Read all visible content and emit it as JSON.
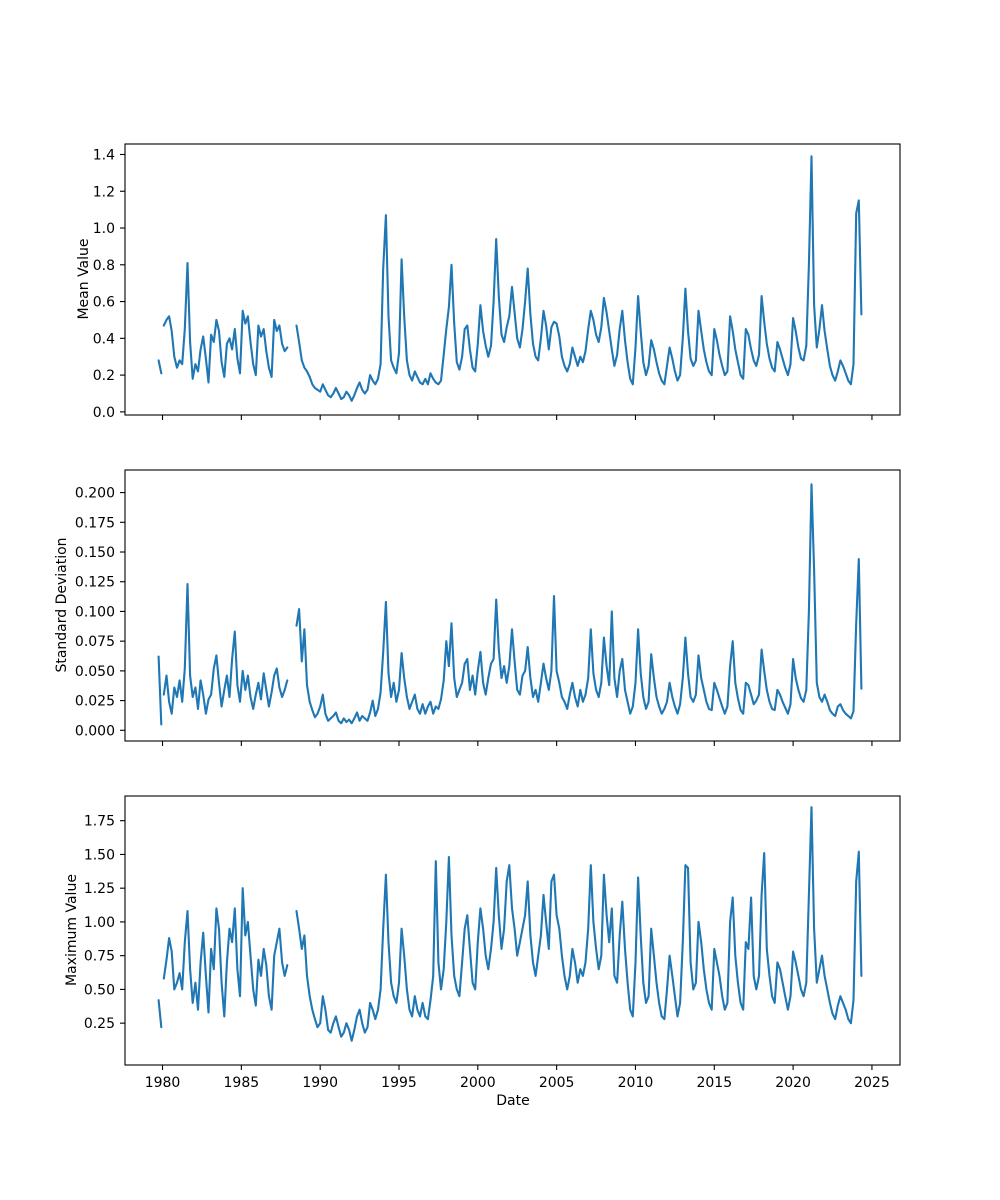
{
  "figure_background": "#ffffff",
  "axis_color": "#000000",
  "text_color": "#000000",
  "x_axis": {
    "label": "Date",
    "lim": [
      1977.62,
      2026.78
    ],
    "tick_values": [
      1980,
      1985,
      1990,
      1995,
      2000,
      2005,
      2010,
      2015,
      2020,
      2025
    ],
    "tick_labels": [
      "1980",
      "1985",
      "1990",
      "1995",
      "2000",
      "2005",
      "2010",
      "2015",
      "2020",
      "2025"
    ]
  },
  "chart_data": [
    {
      "id": "mean",
      "type": "line",
      "ylabel": "Mean Value",
      "series_color": "#1f77b4",
      "ylim": [
        -0.017,
        1.457
      ],
      "ytick_values": [
        0.0,
        0.2,
        0.4,
        0.6,
        0.8,
        1.0,
        1.2,
        1.4
      ],
      "ytick_labels": [
        "0.0",
        "0.2",
        "0.4",
        "0.6",
        "0.8",
        "1.0",
        "1.2",
        "1.4"
      ],
      "segments": [
        {
          "points": [
            [
              1979.75,
              0.28
            ],
            [
              1979.92,
              0.21
            ]
          ]
        },
        {
          "x0": 1980.083,
          "dx": 0.166667,
          "values": [
            0.47,
            0.5,
            0.52,
            0.44,
            0.3,
            0.24,
            0.28,
            0.26,
            0.45,
            0.81,
            0.38,
            0.18,
            0.26,
            0.22,
            0.34,
            0.41,
            0.29,
            0.16,
            0.42,
            0.38,
            0.5,
            0.44,
            0.27,
            0.19,
            0.37,
            0.4,
            0.34,
            0.45,
            0.29,
            0.21,
            0.55,
            0.48,
            0.52,
            0.38,
            0.26,
            0.2,
            0.47,
            0.41,
            0.45,
            0.33,
            0.24,
            0.19,
            0.5,
            0.44,
            0.47,
            0.37,
            0.33,
            0.35
          ]
        },
        {
          "x0": 1988.5,
          "dx": 0.166667,
          "values": [
            0.47,
            0.38,
            0.28,
            0.24,
            0.22,
            0.19,
            0.15,
            0.13,
            0.12,
            0.11,
            0.15,
            0.12,
            0.09,
            0.08,
            0.1,
            0.13,
            0.1,
            0.07,
            0.08,
            0.11,
            0.09,
            0.06,
            0.09,
            0.13,
            0.16,
            0.12,
            0.1,
            0.12,
            0.2,
            0.17,
            0.15,
            0.18,
            0.26,
            0.78,
            1.07,
            0.52,
            0.28,
            0.24,
            0.21,
            0.32,
            0.83,
            0.52,
            0.28,
            0.2,
            0.17,
            0.22,
            0.19,
            0.16,
            0.15,
            0.18,
            0.15,
            0.21,
            0.18,
            0.16,
            0.15,
            0.17,
            0.31,
            0.45,
            0.57,
            0.8,
            0.48,
            0.27,
            0.23,
            0.3,
            0.45,
            0.47,
            0.34,
            0.24,
            0.22,
            0.37,
            0.58,
            0.44,
            0.36,
            0.3,
            0.36,
            0.6,
            0.94,
            0.63,
            0.42,
            0.38,
            0.46,
            0.52,
            0.68,
            0.54,
            0.4,
            0.35,
            0.45,
            0.6,
            0.78,
            0.53,
            0.37,
            0.3,
            0.28,
            0.4,
            0.55,
            0.47,
            0.34,
            0.46,
            0.49,
            0.48,
            0.41,
            0.3,
            0.25,
            0.22,
            0.26,
            0.35,
            0.3,
            0.25,
            0.3,
            0.27,
            0.33,
            0.45,
            0.55,
            0.5,
            0.42,
            0.38,
            0.46,
            0.62,
            0.54,
            0.44,
            0.34,
            0.25,
            0.31,
            0.45,
            0.55,
            0.39,
            0.27,
            0.18,
            0.15,
            0.35,
            0.63,
            0.44,
            0.27,
            0.2,
            0.25,
            0.39,
            0.34,
            0.27,
            0.21,
            0.17,
            0.15,
            0.25,
            0.35,
            0.29,
            0.22,
            0.17,
            0.2,
            0.4,
            0.67,
            0.44,
            0.29,
            0.25,
            0.28,
            0.55,
            0.44,
            0.34,
            0.27,
            0.22,
            0.2,
            0.45,
            0.39,
            0.31,
            0.25,
            0.2,
            0.22,
            0.52,
            0.44,
            0.34,
            0.27,
            0.2,
            0.18,
            0.45,
            0.42,
            0.34,
            0.28,
            0.25,
            0.31,
            0.63,
            0.49,
            0.37,
            0.29,
            0.24,
            0.22,
            0.38,
            0.34,
            0.29,
            0.24,
            0.2,
            0.26,
            0.51,
            0.44,
            0.35,
            0.29,
            0.28,
            0.36,
            0.8,
            1.39,
            0.58,
            0.35,
            0.45,
            0.58,
            0.44,
            0.34,
            0.25,
            0.2,
            0.17,
            0.22,
            0.28,
            0.25,
            0.21,
            0.17,
            0.15,
            0.26,
            1.08,
            1.15,
            0.53
          ]
        }
      ]
    },
    {
      "id": "std",
      "type": "line",
      "ylabel": "Standard Deviation",
      "series_color": "#1f77b4",
      "ylim": [
        -0.009,
        0.219
      ],
      "ytick_values": [
        0.0,
        0.025,
        0.05,
        0.075,
        0.1,
        0.125,
        0.15,
        0.175,
        0.2
      ],
      "ytick_labels": [
        "0.000",
        "0.025",
        "0.050",
        "0.075",
        "0.100",
        "0.125",
        "0.150",
        "0.175",
        "0.200"
      ],
      "segments": [
        {
          "points": [
            [
              1979.75,
              0.062
            ],
            [
              1979.92,
              0.005
            ]
          ]
        },
        {
          "x0": 1980.083,
          "dx": 0.166667,
          "values": [
            0.03,
            0.046,
            0.024,
            0.014,
            0.036,
            0.028,
            0.042,
            0.024,
            0.052,
            0.123,
            0.046,
            0.028,
            0.036,
            0.018,
            0.042,
            0.03,
            0.014,
            0.026,
            0.03,
            0.052,
            0.063,
            0.04,
            0.02,
            0.034,
            0.046,
            0.028,
            0.06,
            0.083,
            0.038,
            0.024,
            0.05,
            0.034,
            0.046,
            0.028,
            0.018,
            0.03,
            0.04,
            0.026,
            0.048,
            0.034,
            0.02,
            0.032,
            0.046,
            0.052,
            0.036,
            0.028,
            0.034,
            0.042
          ]
        },
        {
          "x0": 1988.5,
          "dx": 0.166667,
          "values": [
            0.088,
            0.102,
            0.058,
            0.085,
            0.038,
            0.024,
            0.017,
            0.011,
            0.014,
            0.02,
            0.03,
            0.014,
            0.008,
            0.01,
            0.012,
            0.015,
            0.008,
            0.006,
            0.01,
            0.007,
            0.009,
            0.006,
            0.01,
            0.015,
            0.008,
            0.012,
            0.01,
            0.008,
            0.015,
            0.025,
            0.012,
            0.018,
            0.032,
            0.066,
            0.108,
            0.048,
            0.028,
            0.04,
            0.024,
            0.034,
            0.065,
            0.044,
            0.028,
            0.018,
            0.024,
            0.03,
            0.018,
            0.014,
            0.022,
            0.014,
            0.02,
            0.024,
            0.014,
            0.02,
            0.018,
            0.026,
            0.042,
            0.075,
            0.054,
            0.09,
            0.044,
            0.028,
            0.034,
            0.04,
            0.056,
            0.06,
            0.034,
            0.046,
            0.03,
            0.05,
            0.066,
            0.04,
            0.03,
            0.044,
            0.056,
            0.06,
            0.11,
            0.068,
            0.044,
            0.054,
            0.04,
            0.054,
            0.085,
            0.058,
            0.034,
            0.03,
            0.046,
            0.05,
            0.07,
            0.044,
            0.028,
            0.034,
            0.024,
            0.04,
            0.056,
            0.044,
            0.034,
            0.05,
            0.113,
            0.05,
            0.04,
            0.028,
            0.024,
            0.018,
            0.03,
            0.04,
            0.028,
            0.02,
            0.034,
            0.024,
            0.03,
            0.044,
            0.085,
            0.048,
            0.034,
            0.028,
            0.04,
            0.078,
            0.054,
            0.038,
            0.1,
            0.044,
            0.028,
            0.05,
            0.06,
            0.034,
            0.024,
            0.014,
            0.02,
            0.04,
            0.085,
            0.048,
            0.028,
            0.018,
            0.024,
            0.064,
            0.044,
            0.028,
            0.02,
            0.014,
            0.018,
            0.024,
            0.04,
            0.028,
            0.02,
            0.014,
            0.022,
            0.044,
            0.078,
            0.048,
            0.028,
            0.024,
            0.03,
            0.063,
            0.044,
            0.034,
            0.024,
            0.018,
            0.017,
            0.04,
            0.034,
            0.027,
            0.02,
            0.014,
            0.02,
            0.054,
            0.075,
            0.04,
            0.027,
            0.017,
            0.014,
            0.04,
            0.038,
            0.03,
            0.022,
            0.025,
            0.03,
            0.068,
            0.05,
            0.034,
            0.024,
            0.018,
            0.017,
            0.034,
            0.03,
            0.024,
            0.019,
            0.014,
            0.022,
            0.06,
            0.044,
            0.034,
            0.027,
            0.024,
            0.034,
            0.1,
            0.207,
            0.135,
            0.04,
            0.028,
            0.024,
            0.03,
            0.024,
            0.017,
            0.014,
            0.012,
            0.02,
            0.022,
            0.017,
            0.014,
            0.012,
            0.01,
            0.016,
            0.09,
            0.144,
            0.035
          ]
        }
      ]
    },
    {
      "id": "max",
      "type": "line",
      "ylabel": "Maximum Value",
      "series_color": "#1f77b4",
      "ylim": [
        -0.06,
        1.933
      ],
      "ytick_values": [
        0.25,
        0.5,
        0.75,
        1.0,
        1.25,
        1.5,
        1.75
      ],
      "ytick_labels": [
        "0.25",
        "0.50",
        "0.75",
        "1.00",
        "1.25",
        "1.50",
        "1.75"
      ],
      "segments": [
        {
          "points": [
            [
              1979.75,
              0.42
            ],
            [
              1979.92,
              0.22
            ]
          ]
        },
        {
          "x0": 1980.083,
          "dx": 0.166667,
          "values": [
            0.58,
            0.72,
            0.88,
            0.78,
            0.5,
            0.55,
            0.62,
            0.5,
            0.85,
            1.08,
            0.65,
            0.4,
            0.55,
            0.35,
            0.7,
            0.92,
            0.6,
            0.33,
            0.8,
            0.65,
            1.1,
            0.95,
            0.55,
            0.3,
            0.7,
            0.95,
            0.85,
            1.1,
            0.65,
            0.45,
            1.25,
            0.9,
            1.0,
            0.75,
            0.5,
            0.38,
            0.72,
            0.6,
            0.8,
            0.68,
            0.45,
            0.35,
            0.75,
            0.85,
            0.95,
            0.7,
            0.6,
            0.68
          ]
        },
        {
          "x0": 1988.5,
          "dx": 0.166667,
          "values": [
            1.08,
            0.95,
            0.8,
            0.9,
            0.6,
            0.45,
            0.35,
            0.28,
            0.22,
            0.25,
            0.45,
            0.35,
            0.2,
            0.18,
            0.25,
            0.3,
            0.22,
            0.15,
            0.18,
            0.25,
            0.2,
            0.12,
            0.2,
            0.3,
            0.35,
            0.25,
            0.18,
            0.22,
            0.4,
            0.35,
            0.28,
            0.35,
            0.5,
            0.95,
            1.35,
            0.85,
            0.55,
            0.45,
            0.4,
            0.55,
            0.95,
            0.75,
            0.5,
            0.35,
            0.3,
            0.45,
            0.35,
            0.3,
            0.4,
            0.3,
            0.28,
            0.42,
            0.6,
            1.45,
            0.7,
            0.5,
            0.65,
            1.0,
            1.48,
            0.9,
            0.6,
            0.5,
            0.45,
            0.7,
            0.95,
            1.05,
            0.8,
            0.55,
            0.5,
            0.85,
            1.1,
            0.95,
            0.75,
            0.65,
            0.8,
            1.0,
            1.4,
            1.05,
            0.8,
            0.95,
            1.3,
            1.42,
            1.1,
            0.95,
            0.75,
            0.85,
            0.95,
            1.05,
            1.3,
            0.9,
            0.7,
            0.6,
            0.75,
            0.9,
            1.2,
            1.0,
            0.8,
            1.3,
            1.35,
            1.05,
            0.95,
            0.75,
            0.6,
            0.5,
            0.6,
            0.8,
            0.7,
            0.55,
            0.65,
            0.6,
            0.7,
            0.95,
            1.42,
            1.0,
            0.8,
            0.65,
            0.75,
            1.35,
            1.05,
            0.85,
            1.1,
            0.6,
            0.55,
            0.9,
            1.15,
            0.8,
            0.55,
            0.35,
            0.3,
            0.7,
            1.33,
            0.9,
            0.55,
            0.4,
            0.45,
            0.95,
            0.75,
            0.55,
            0.4,
            0.3,
            0.28,
            0.5,
            0.75,
            0.6,
            0.45,
            0.3,
            0.4,
            0.85,
            1.42,
            1.4,
            0.7,
            0.5,
            0.55,
            1.0,
            0.85,
            0.65,
            0.5,
            0.4,
            0.35,
            0.8,
            0.7,
            0.6,
            0.45,
            0.35,
            0.4,
            1.0,
            1.18,
            0.75,
            0.55,
            0.4,
            0.35,
            0.85,
            0.8,
            1.18,
            0.6,
            0.5,
            0.6,
            1.2,
            1.51,
            0.8,
            0.6,
            0.45,
            0.4,
            0.7,
            0.65,
            0.55,
            0.45,
            0.35,
            0.45,
            0.78,
            0.7,
            0.6,
            0.5,
            0.45,
            0.55,
            1.2,
            1.85,
            0.95,
            0.55,
            0.65,
            0.75,
            0.6,
            0.5,
            0.4,
            0.32,
            0.28,
            0.38,
            0.45,
            0.4,
            0.35,
            0.28,
            0.25,
            0.42,
            1.3,
            1.52,
            0.6
          ]
        }
      ]
    }
  ]
}
